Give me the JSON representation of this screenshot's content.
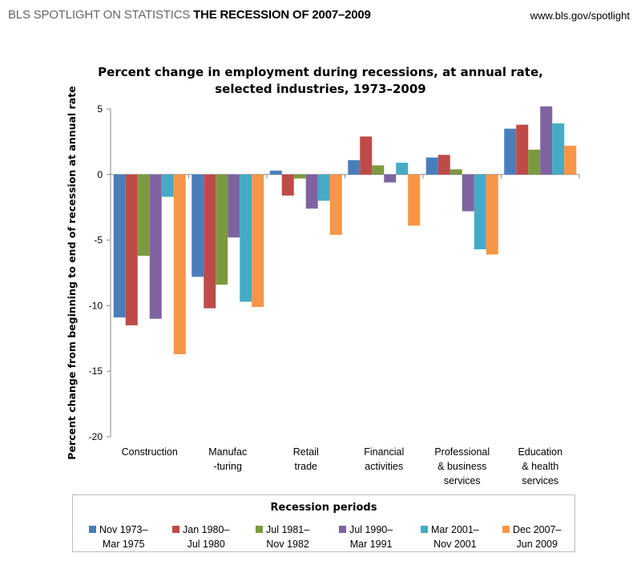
{
  "header": {
    "series_name": "BLS SPOTLIGHT ON STATISTICS",
    "report_title": "THE RECESSION OF 2007–2009",
    "url": "www.bls.gov/spotlight"
  },
  "chart_data": {
    "type": "bar",
    "title_line1": "Percent change in employment during recessions, at annual rate,",
    "title_line2": "selected industries, 1973–2009",
    "ylabel": "Percent change from beginning to end of recession at annual rate",
    "xlabel": "",
    "ylim": [
      -20,
      5
    ],
    "yticks": [
      5,
      0,
      -5,
      -10,
      -15,
      -20
    ],
    "categories": [
      [
        "Construction"
      ],
      [
        "Manufac",
        "-turing"
      ],
      [
        "Retail",
        "trade"
      ],
      [
        "Financial",
        "activities"
      ],
      [
        "Professional",
        "& business",
        "services"
      ],
      [
        "Education",
        "& health",
        "services"
      ]
    ],
    "legend_title": "Recession periods",
    "series": [
      {
        "line1": "Nov 1973–",
        "line2": "Mar 1975",
        "color": "#4a7ebb",
        "values": [
          -10.9,
          -7.8,
          0.3,
          1.1,
          1.3,
          3.5
        ]
      },
      {
        "line1": "Jan 1980–",
        "line2": "Jul 1980",
        "color": "#be4b48",
        "values": [
          -11.5,
          -10.2,
          -1.6,
          2.9,
          1.5,
          3.8
        ]
      },
      {
        "line1": "Jul 1981–",
        "line2": "Nov 1982",
        "color": "#7b9a3e",
        "values": [
          -6.2,
          -8.4,
          -0.3,
          0.7,
          0.4,
          1.9
        ]
      },
      {
        "line1": "Jul 1990–",
        "line2": "Mar 1991",
        "color": "#7f63a1",
        "values": [
          -11.0,
          -4.8,
          -2.6,
          -0.6,
          -2.8,
          5.2
        ]
      },
      {
        "line1": "Mar 2001–",
        "line2": "Nov 2001",
        "color": "#46aac4",
        "values": [
          -1.7,
          -9.7,
          -2.0,
          0.9,
          -5.7,
          3.9
        ]
      },
      {
        "line1": "Dec 2007–",
        "line2": "Jun 2009",
        "color": "#f79646",
        "values": [
          -13.7,
          -10.1,
          -4.6,
          -3.9,
          -6.1,
          2.2
        ]
      }
    ]
  }
}
